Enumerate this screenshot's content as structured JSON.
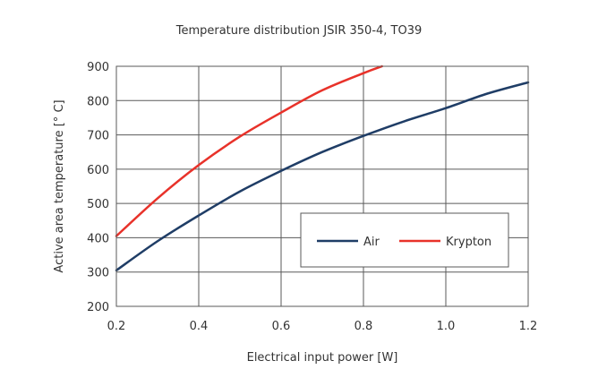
{
  "chart_data": {
    "type": "line",
    "title": "Temperature distribution JSIR 350-4, TO39",
    "xlabel": "Electrical input power [W]",
    "ylabel": "Active area temperature [° C]",
    "xlim": [
      0.2,
      1.2
    ],
    "ylim": [
      200,
      900
    ],
    "xticks": [
      0.2,
      0.4,
      0.6,
      0.8,
      1.0,
      1.2
    ],
    "xtick_labels": [
      "0.2",
      "0.4",
      "0.6",
      "0.8",
      "1.0",
      "1.2"
    ],
    "yticks": [
      200,
      300,
      400,
      500,
      600,
      700,
      800,
      900
    ],
    "ytick_labels": [
      "200",
      "300",
      "400",
      "500",
      "600",
      "700",
      "800",
      "900"
    ],
    "grid": true,
    "legend_position": "lower-right",
    "series": [
      {
        "name": "Air",
        "color": "#1f3d66",
        "x": [
          0.2,
          0.3,
          0.4,
          0.5,
          0.6,
          0.7,
          0.8,
          0.9,
          1.0,
          1.1,
          1.2
        ],
        "y": [
          305,
          390,
          465,
          535,
          595,
          650,
          697,
          740,
          778,
          820,
          853
        ]
      },
      {
        "name": "Krypton",
        "color": "#e8322a",
        "x": [
          0.2,
          0.3,
          0.4,
          0.5,
          0.6,
          0.7,
          0.8,
          0.845
        ],
        "y": [
          405,
          515,
          612,
          695,
          765,
          830,
          880,
          900
        ]
      }
    ]
  }
}
